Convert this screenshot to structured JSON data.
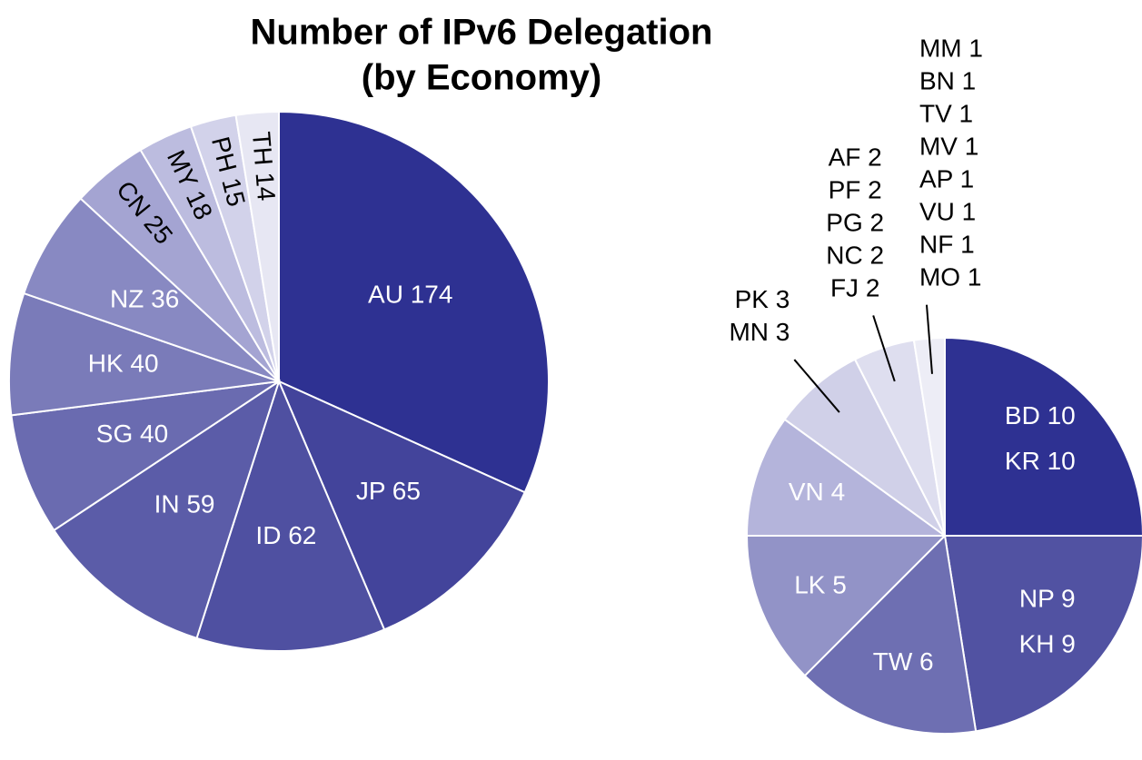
{
  "title": [
    "Number of IPv6 Delegation",
    "(by Economy)"
  ],
  "chart_data": [
    {
      "type": "pie",
      "categories": [
        "AU",
        "JP",
        "ID",
        "IN",
        "SG",
        "HK",
        "NZ",
        "CN",
        "MY",
        "PH",
        "TH"
      ],
      "values": [
        174,
        65,
        62,
        59,
        40,
        40,
        36,
        25,
        18,
        15,
        14
      ],
      "colors": [
        "#2e3192",
        "#43449b",
        "#4f50a1",
        "#5b5ca8",
        "#6a6bb0",
        "#7a7bb9",
        "#8889c2",
        "#a4a4d2",
        "#bcbcdf",
        "#d2d2ea",
        "#e7e7f3"
      ],
      "label_colors": [
        "#ffffff",
        "#ffffff",
        "#ffffff",
        "#ffffff",
        "#ffffff",
        "#ffffff",
        "#ffffff",
        "#000000",
        "#000000",
        "#000000",
        "#000000"
      ]
    },
    {
      "type": "pie",
      "groups": [
        {
          "names": [
            "BD",
            "KR"
          ],
          "value": 10
        },
        {
          "names": [
            "NP",
            "KH"
          ],
          "value": 9
        },
        {
          "names": [
            "TW"
          ],
          "value": 6
        },
        {
          "names": [
            "LK"
          ],
          "value": 5
        },
        {
          "names": [
            "VN"
          ],
          "value": 4
        },
        {
          "names": [
            "PK",
            "MN"
          ],
          "value": 3
        },
        {
          "names": [
            "AF",
            "PF",
            "PG",
            "NC",
            "FJ"
          ],
          "value": 2
        },
        {
          "names": [
            "MM",
            "BN",
            "TV",
            "MV",
            "AP",
            "VU",
            "NF",
            "MO"
          ],
          "value": 1
        }
      ],
      "colors": [
        "#2e3192",
        "#5152a2",
        "#6e6fb2",
        "#9293c7",
        "#b4b4db",
        "#d0d0e8",
        "#dedeef",
        "#ededf6"
      ],
      "label_colors": [
        "#ffffff",
        "#ffffff",
        "#ffffff",
        "#ffffff",
        "#ffffff",
        "#000000",
        "#000000",
        "#000000"
      ]
    }
  ]
}
